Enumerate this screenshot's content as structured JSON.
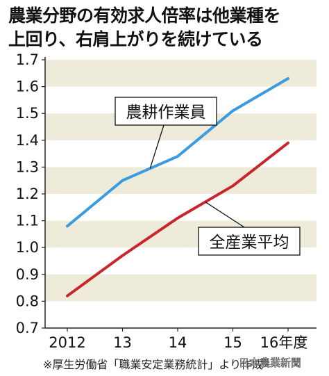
{
  "header": {
    "title_line1": "農業分野の有効求人倍率は他業種を",
    "title_line2": "上回り、右肩上がりを続けている"
  },
  "footnote": "※厚生労働省「職業安定業務統計」より作成",
  "credit": "日本農業新聞",
  "colors": {
    "agri_line": "#3a9be0",
    "all_line": "#c8262b",
    "band": "#efebdb",
    "axis": "#222222"
  },
  "chart_data": {
    "type": "line",
    "title": "農業分野の有効求人倍率は他業種を上回り、右肩上がりを続けている",
    "x": [
      "2012",
      "13",
      "14",
      "15",
      "16年度"
    ],
    "series": [
      {
        "name": "農耕作業員",
        "values": [
          1.08,
          1.25,
          1.34,
          1.51,
          1.63
        ]
      },
      {
        "name": "全産業平均",
        "values": [
          0.82,
          0.97,
          1.11,
          1.23,
          1.39
        ]
      }
    ],
    "yticks": [
      "0.7",
      "0.8",
      "0.9",
      "1.0",
      "1.1",
      "1.2",
      "1.3",
      "1.4",
      "1.5",
      "1.6",
      "1.7"
    ],
    "ylim": [
      0.7,
      1.7
    ],
    "grid": "alternating bands",
    "legend": "callout labels"
  }
}
